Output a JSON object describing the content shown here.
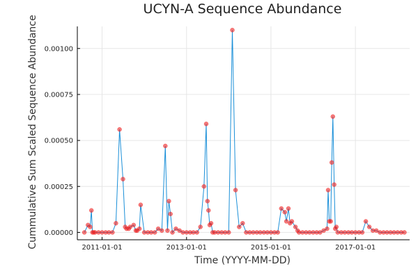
{
  "chart_data": {
    "type": "scatter",
    "title": "UCYN-A Sequence Abundance",
    "xlabel": "Time (YYYY-MM-DD)",
    "ylabel": "Cummulative Sum Scaled Sequence Abundance",
    "x_axis_type": "date",
    "xlim": [
      "2010-06-01",
      "2018-04-15"
    ],
    "ylim": [
      -4e-05,
      0.00112
    ],
    "x_ticks": [
      {
        "value": "2011-01-01",
        "label": "2011-01-01"
      },
      {
        "value": "2013-01-01",
        "label": "2013-01-01"
      },
      {
        "value": "2015-01-01",
        "label": "2015-01-01"
      },
      {
        "value": "2017-01-01",
        "label": "2017-01-01"
      }
    ],
    "y_ticks": [
      {
        "value": 0,
        "label": "0.00000"
      },
      {
        "value": 0.00025,
        "label": "0.00025"
      },
      {
        "value": 0.0005,
        "label": "0.00050"
      },
      {
        "value": 0.00075,
        "label": "0.00075"
      },
      {
        "value": 0.001,
        "label": "0.00100"
      }
    ],
    "grid": true,
    "legend": false,
    "line_color": "#1a8fd8",
    "marker_color": "#ee2222",
    "series": [
      {
        "x": [
          "2010-08-01",
          "2010-09-01",
          "2010-09-20",
          "2010-10-01",
          "2010-10-10",
          "2010-10-20",
          "2010-11-01",
          "2010-12-01",
          "2011-01-01",
          "2011-02-01",
          "2011-03-01",
          "2011-04-01",
          "2011-05-01",
          "2011-06-01",
          "2011-07-01",
          "2011-07-20",
          "2011-08-01",
          "2011-08-20",
          "2011-09-01",
          "2011-10-01",
          "2011-10-20",
          "2011-11-01",
          "2011-11-20",
          "2011-12-01",
          "2012-01-01",
          "2012-02-01",
          "2012-03-01",
          "2012-04-01",
          "2012-05-01",
          "2012-06-01",
          "2012-07-01",
          "2012-07-20",
          "2012-08-01",
          "2012-08-15",
          "2012-09-01",
          "2012-10-01",
          "2012-11-01",
          "2012-12-01",
          "2013-01-01",
          "2013-02-01",
          "2013-03-01",
          "2013-04-01",
          "2013-05-01",
          "2013-06-01",
          "2013-06-20",
          "2013-07-01",
          "2013-07-10",
          "2013-07-20",
          "2013-08-01",
          "2013-08-15",
          "2013-09-01",
          "2013-10-01",
          "2013-11-01",
          "2013-12-01",
          "2014-01-01",
          "2014-02-01",
          "2014-03-01",
          "2014-04-01",
          "2014-05-01",
          "2014-06-01",
          "2014-07-01",
          "2014-08-01",
          "2014-09-01",
          "2014-10-01",
          "2014-11-01",
          "2014-12-01",
          "2015-01-01",
          "2015-02-01",
          "2015-03-01",
          "2015-04-01",
          "2015-05-01",
          "2015-05-15",
          "2015-06-01",
          "2015-06-15",
          "2015-07-01",
          "2015-08-01",
          "2015-08-20",
          "2015-09-01",
          "2015-10-01",
          "2015-11-01",
          "2015-12-01",
          "2016-01-01",
          "2016-02-01",
          "2016-03-01",
          "2016-04-01",
          "2016-05-01",
          "2016-05-10",
          "2016-05-20",
          "2016-06-01",
          "2016-06-10",
          "2016-06-20",
          "2016-07-01",
          "2016-07-10",
          "2016-07-20",
          "2016-08-01",
          "2016-09-01",
          "2016-10-01",
          "2016-11-01",
          "2016-12-01",
          "2017-01-01",
          "2017-02-01",
          "2017-03-01",
          "2017-04-01",
          "2017-05-01",
          "2017-06-01",
          "2017-07-01",
          "2017-08-01",
          "2017-09-01",
          "2017-10-01",
          "2017-11-01",
          "2017-12-01",
          "2018-01-01",
          "2018-02-01",
          "2018-03-01"
        ],
        "y": [
          0,
          4e-05,
          3e-05,
          0.00012,
          0,
          0,
          0,
          0,
          0,
          0,
          0,
          0,
          5e-05,
          0.00056,
          0.00029,
          3e-05,
          2e-05,
          2e-05,
          3e-05,
          4e-05,
          1e-05,
          1e-05,
          2e-05,
          0.00015,
          0,
          0,
          0,
          0,
          2e-05,
          1e-05,
          0.00047,
          1e-05,
          0.00017,
          0.0001,
          0,
          2e-05,
          1e-05,
          0,
          0,
          0,
          0,
          0,
          3e-05,
          0.00025,
          0.00059,
          0.00017,
          0.00012,
          4e-05,
          5e-05,
          0,
          0,
          0,
          0,
          0,
          0,
          0.0011,
          0.00023,
          3e-05,
          5e-05,
          0,
          0,
          0,
          0,
          0,
          0,
          0,
          0,
          0,
          0,
          0.00013,
          0.00011,
          6e-05,
          0.00013,
          5e-05,
          6e-05,
          3e-05,
          1e-05,
          0,
          0,
          0,
          0,
          0,
          0,
          0,
          1e-05,
          2e-05,
          0.00023,
          6e-05,
          6e-05,
          0.00038,
          0.00063,
          0.00026,
          2e-05,
          3e-05,
          0,
          0,
          0,
          0,
          0,
          0,
          0,
          0,
          6e-05,
          3e-05,
          1e-05,
          1e-05,
          0,
          0,
          0,
          0,
          0,
          0,
          0,
          0
        ]
      }
    ]
  }
}
